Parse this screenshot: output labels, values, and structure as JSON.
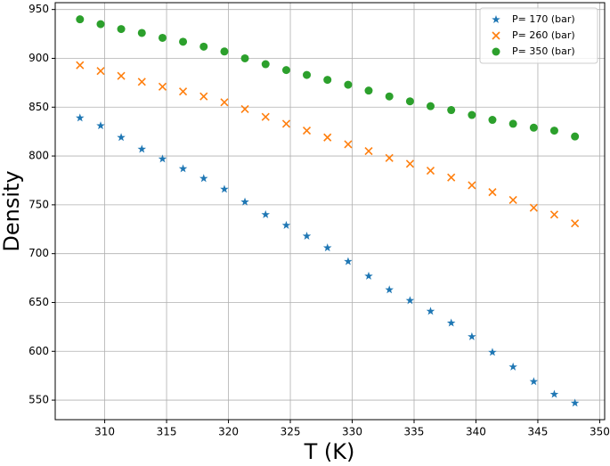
{
  "chart_data": {
    "type": "scatter",
    "xlabel": "T (K)",
    "ylabel": "Density",
    "x": [
      308,
      309.67,
      311.33,
      313,
      314.67,
      316.33,
      318,
      319.67,
      321.33,
      323,
      324.67,
      326.33,
      328,
      329.67,
      331.33,
      333,
      334.67,
      336.33,
      338,
      339.67,
      341.33,
      343,
      344.67,
      346.33,
      348
    ],
    "series": [
      {
        "name": "P= 170 (bar)",
        "color": "#1f77b4",
        "marker": "star",
        "values": [
          839,
          831,
          819,
          807,
          797,
          787,
          777,
          766,
          753,
          740,
          729,
          718,
          706,
          692,
          677,
          663,
          652,
          641,
          629,
          615,
          599,
          584,
          569,
          556,
          547
        ]
      },
      {
        "name": "P= 260 (bar)",
        "color": "#ff7f0e",
        "marker": "x",
        "values": [
          893,
          887,
          882,
          876,
          871,
          866,
          861,
          855,
          848,
          840,
          833,
          826,
          819,
          812,
          805,
          798,
          792,
          785,
          778,
          770,
          763,
          755,
          747,
          740,
          731
        ]
      },
      {
        "name": "P= 350 (bar)",
        "color": "#2ca02c",
        "marker": "circle",
        "values": [
          940,
          935,
          930,
          926,
          921,
          917,
          912,
          907,
          900,
          894,
          888,
          883,
          878,
          873,
          867,
          861,
          856,
          851,
          847,
          842,
          837,
          833,
          829,
          826,
          820
        ]
      }
    ],
    "xlim": [
      306,
      350.4
    ],
    "ylim": [
      530,
      957
    ],
    "xticks": [
      310,
      315,
      320,
      325,
      330,
      335,
      340,
      345,
      350
    ],
    "yticks": [
      550,
      600,
      650,
      700,
      750,
      800,
      850,
      900,
      950
    ],
    "grid": true,
    "legend": "upper right"
  }
}
